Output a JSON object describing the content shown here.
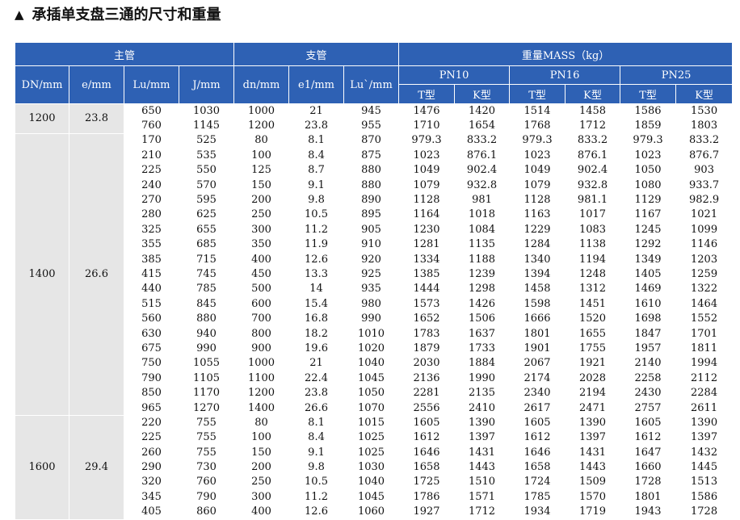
{
  "title": "承插单支盘三通的尺寸和重量",
  "headers": {
    "main_pipe": "主管",
    "branch_pipe": "支管",
    "mass": "重量MASS（kg）",
    "dn": "DN/mm",
    "e": "e/mm",
    "lu": "Lu/mm",
    "j": "J/mm",
    "dn_branch": "dn/mm",
    "e1": "e1/mm",
    "lu_prime": "Lu`/mm",
    "pn10": "PN10",
    "pn16": "PN16",
    "pn25": "PN25",
    "t_type": "T型",
    "k_type": "K型"
  },
  "groups": [
    {
      "dn": "1200",
      "e": "23.8",
      "rows": [
        [
          "650",
          "1030",
          "1000",
          "21",
          "945",
          "1476",
          "1420",
          "1514",
          "1458",
          "1586",
          "1530"
        ],
        [
          "760",
          "1145",
          "1200",
          "23.8",
          "955",
          "1710",
          "1654",
          "1768",
          "1712",
          "1859",
          "1803"
        ]
      ]
    },
    {
      "dn": "1400",
      "e": "26.6",
      "rows": [
        [
          "170",
          "525",
          "80",
          "8.1",
          "870",
          "979.3",
          "833.2",
          "979.3",
          "833.2",
          "979.3",
          "833.2"
        ],
        [
          "210",
          "535",
          "100",
          "8.4",
          "875",
          "1023",
          "876.1",
          "1023",
          "876.1",
          "1023",
          "876.7"
        ],
        [
          "225",
          "550",
          "125",
          "8.7",
          "880",
          "1049",
          "902.4",
          "1049",
          "902.4",
          "1050",
          "903"
        ],
        [
          "240",
          "570",
          "150",
          "9.1",
          "880",
          "1079",
          "932.8",
          "1079",
          "932.8",
          "1080",
          "933.7"
        ],
        [
          "270",
          "595",
          "200",
          "9.8",
          "890",
          "1128",
          "981",
          "1128",
          "981.1",
          "1129",
          "982.9"
        ],
        [
          "280",
          "625",
          "250",
          "10.5",
          "895",
          "1164",
          "1018",
          "1163",
          "1017",
          "1167",
          "1021"
        ],
        [
          "325",
          "655",
          "300",
          "11.2",
          "905",
          "1230",
          "1084",
          "1229",
          "1083",
          "1245",
          "1099"
        ],
        [
          "355",
          "685",
          "350",
          "11.9",
          "910",
          "1281",
          "1135",
          "1284",
          "1138",
          "1292",
          "1146"
        ],
        [
          "385",
          "715",
          "400",
          "12.6",
          "920",
          "1334",
          "1188",
          "1340",
          "1194",
          "1349",
          "1203"
        ],
        [
          "415",
          "745",
          "450",
          "13.3",
          "925",
          "1385",
          "1239",
          "1394",
          "1248",
          "1405",
          "1259"
        ],
        [
          "440",
          "785",
          "500",
          "14",
          "935",
          "1444",
          "1298",
          "1458",
          "1312",
          "1469",
          "1322"
        ],
        [
          "515",
          "845",
          "600",
          "15.4",
          "980",
          "1573",
          "1426",
          "1598",
          "1451",
          "1610",
          "1464"
        ],
        [
          "560",
          "880",
          "700",
          "16.8",
          "990",
          "1652",
          "1506",
          "1666",
          "1520",
          "1698",
          "1552"
        ],
        [
          "630",
          "940",
          "800",
          "18.2",
          "1010",
          "1783",
          "1637",
          "1801",
          "1655",
          "1847",
          "1701"
        ],
        [
          "675",
          "990",
          "900",
          "19.6",
          "1020",
          "1879",
          "1733",
          "1901",
          "1755",
          "1957",
          "1811"
        ],
        [
          "750",
          "1055",
          "1000",
          "21",
          "1040",
          "2030",
          "1884",
          "2067",
          "1921",
          "2140",
          "1994"
        ],
        [
          "790",
          "1105",
          "1100",
          "22.4",
          "1045",
          "2136",
          "1990",
          "2174",
          "2028",
          "2258",
          "2112"
        ],
        [
          "850",
          "1170",
          "1200",
          "23.8",
          "1050",
          "2281",
          "2135",
          "2340",
          "2194",
          "2430",
          "2284"
        ],
        [
          "965",
          "1270",
          "1400",
          "26.6",
          "1070",
          "2556",
          "2410",
          "2617",
          "2471",
          "2757",
          "2611"
        ]
      ]
    },
    {
      "dn": "1600",
      "e": "29.4",
      "rows": [
        [
          "220",
          "755",
          "80",
          "8.1",
          "1015",
          "1605",
          "1390",
          "1605",
          "1390",
          "1605",
          "1390"
        ],
        [
          "225",
          "755",
          "100",
          "8.4",
          "1025",
          "1612",
          "1397",
          "1612",
          "1397",
          "1612",
          "1397"
        ],
        [
          "260",
          "755",
          "150",
          "9.1",
          "1025",
          "1646",
          "1431",
          "1646",
          "1431",
          "1647",
          "1432"
        ],
        [
          "290",
          "730",
          "200",
          "9.8",
          "1030",
          "1658",
          "1443",
          "1658",
          "1443",
          "1660",
          "1445"
        ],
        [
          "320",
          "760",
          "250",
          "10.5",
          "1040",
          "1725",
          "1510",
          "1724",
          "1509",
          "1728",
          "1513"
        ],
        [
          "345",
          "790",
          "300",
          "11.2",
          "1045",
          "1786",
          "1571",
          "1785",
          "1570",
          "1801",
          "1586"
        ],
        [
          "405",
          "860",
          "400",
          "12.6",
          "1060",
          "1927",
          "1712",
          "1934",
          "1719",
          "1943",
          "1728"
        ]
      ]
    }
  ]
}
